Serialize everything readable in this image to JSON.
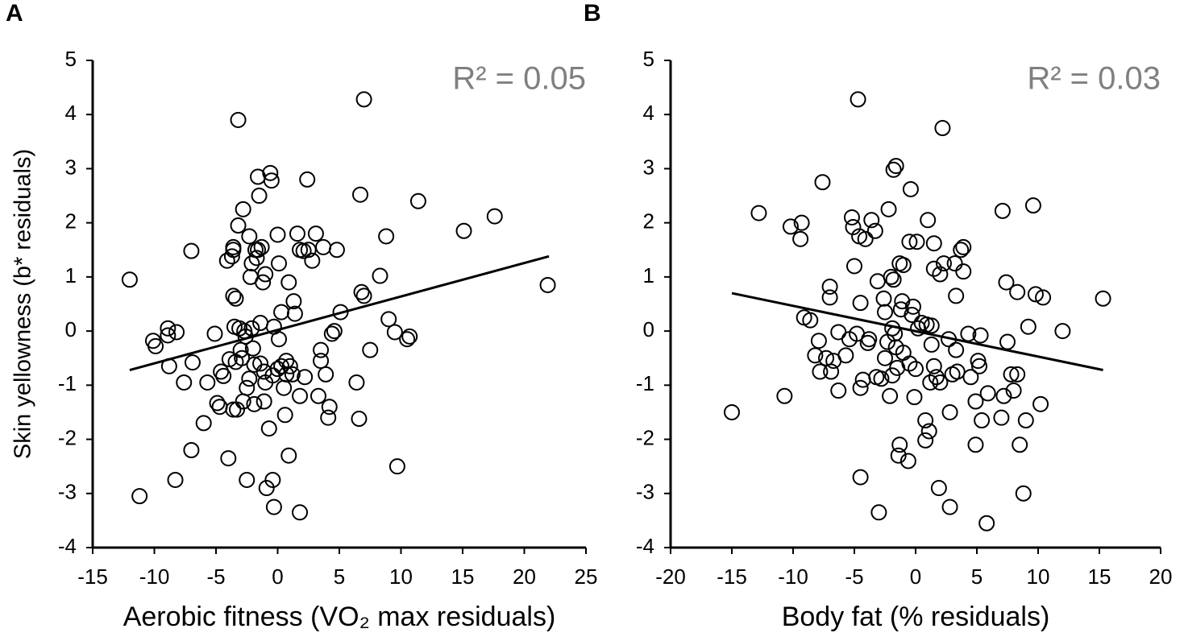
{
  "chart_data": [
    {
      "type": "scatter",
      "label": "A",
      "annotation": "R² = 0.05",
      "xlabel": "Aerobic fitness (VO₂ max residuals)",
      "ylabel": "Skin yellowness (b* residuals)",
      "xlim": [
        -15,
        25
      ],
      "xticks": [
        -15,
        -10,
        -5,
        0,
        5,
        10,
        15,
        20,
        25
      ],
      "ylim": [
        -4,
        5
      ],
      "yticks": [
        -4,
        -3,
        -2,
        -1,
        0,
        1,
        2,
        3,
        4,
        5
      ],
      "x": [
        -12,
        -11.2,
        -10.1,
        -9.9,
        -8.9,
        -8.8,
        -8.9,
        -8.3,
        -8.2,
        -7.6,
        -7,
        -6.9,
        -7,
        -6,
        -5.7,
        -5.1,
        -4.9,
        -4.7,
        -4.6,
        -4.4,
        -4.1,
        -4,
        -3.9,
        -3.7,
        -3.6,
        -3.6,
        -3.6,
        -3.5,
        -3.4,
        -3.4,
        -3.6,
        -3.3,
        -3.2,
        -3.2,
        -3.1,
        -3,
        -2.9,
        -2.8,
        -2.8,
        -2.7,
        -2.6,
        -2.5,
        -2.5,
        -2.3,
        -2.3,
        -2.2,
        -2.1,
        -2.1,
        -2,
        -1.9,
        -1.9,
        -1.8,
        -1.7,
        -1.6,
        -1.6,
        -1.5,
        -1.4,
        -1.4,
        -1.3,
        -1.2,
        -1.1,
        -1.1,
        -1,
        -1,
        -0.9,
        -0.7,
        -0.6,
        -0.5,
        -0.4,
        -0.4,
        -0.3,
        -0.3,
        0,
        0,
        0.1,
        0.1,
        0.3,
        0.3,
        0.5,
        0.6,
        0.7,
        0.7,
        0.9,
        0.9,
        1,
        1.2,
        1.3,
        1.4,
        1.6,
        1.8,
        1.8,
        1.8,
        2.1,
        2.2,
        2.4,
        2.5,
        2.8,
        3.1,
        3.3,
        3.5,
        3.5,
        3.7,
        3.9,
        4.2,
        4.1,
        4.4,
        4.6,
        4.8,
        5.1,
        6.4,
        6.6,
        6.7,
        6.8,
        7,
        7,
        7.5,
        8.3,
        8.8,
        9,
        9.5,
        9.7,
        10.5,
        10.7,
        11.4,
        15.1,
        17.6,
        21.9
      ],
      "values": [
        0.95,
        -3.05,
        -0.18,
        -0.28,
        0.05,
        -0.65,
        -0.08,
        -2.75,
        -0.02,
        -0.95,
        1.48,
        -0.58,
        -2.2,
        -1.7,
        -0.95,
        -0.05,
        -1.33,
        -1.4,
        -0.75,
        -0.83,
        1.3,
        -2.35,
        -0.52,
        1.38,
        1.5,
        1.55,
        0.65,
        0.08,
        0.6,
        -0.57,
        -1.45,
        -1.45,
        3.9,
        1.95,
        0.05,
        -0.35,
        -0.5,
        -1.3,
        2.25,
        0,
        -0.1,
        -2.75,
        -1.05,
        -0.88,
        1.75,
        1,
        0.05,
        1.25,
        -0.32,
        -0.62,
        -1.35,
        1.5,
        1.35,
        1.5,
        2.85,
        2.5,
        -0.6,
        0.15,
        1.55,
        0.9,
        -1.3,
        -0.75,
        -0.95,
        1.05,
        -2.9,
        -1.8,
        2.92,
        2.78,
        -2.75,
        -0.82,
        -3.25,
        0.08,
        1.78,
        -0.7,
        -0.15,
        1.25,
        -0.65,
        0.35,
        -1.05,
        -1.55,
        -0.55,
        -0.8,
        -2.3,
        0.9,
        -0.65,
        -0.8,
        0.55,
        0.32,
        1.8,
        -3.35,
        1.5,
        -1.2,
        1.48,
        -0.85,
        2.8,
        1.5,
        1.3,
        1.8,
        -1.2,
        -0.55,
        -0.35,
        1.55,
        -0.8,
        -1.4,
        -1.6,
        -0.05,
        0,
        1.5,
        0.35,
        -0.95,
        -1.62,
        2.52,
        0.72,
        0.65,
        4.28,
        -0.35,
        1.02,
        1.75,
        0.22,
        -0.02,
        -2.5,
        -0.15,
        -0.1,
        2.4,
        1.85,
        2.12,
        0.85
      ],
      "trendline": {
        "x": [
          -12,
          22
        ],
        "values": [
          -0.72,
          1.38
        ]
      }
    },
    {
      "type": "scatter",
      "label": "B",
      "annotation": "R² = 0.03",
      "xlabel": "Body fat (% residuals)",
      "xlim": [
        -20,
        20
      ],
      "xticks": [
        -20,
        -15,
        -10,
        -5,
        0,
        5,
        10,
        15,
        20
      ],
      "ylim": [
        -4,
        5
      ],
      "yticks": [
        -4,
        -3,
        -2,
        -1,
        0,
        1,
        2,
        3,
        4,
        5
      ],
      "x": [
        -15,
        -12.8,
        -10.7,
        -10.2,
        -9.3,
        -9.4,
        -9.1,
        -8.6,
        -8.2,
        -7.9,
        -7.8,
        -7.6,
        -7.3,
        -7,
        -7,
        -6.9,
        -6.7,
        -6.3,
        -6.3,
        -5.7,
        -5.4,
        -5.2,
        -5.1,
        -5,
        -4.8,
        -4.7,
        -4.6,
        -4.5,
        -4.3,
        -4.5,
        -4.5,
        -4.1,
        -3.9,
        -3.8,
        -3.6,
        -3.3,
        -3.1,
        -3.2,
        -3,
        -2.8,
        -2.6,
        -2.5,
        -2.5,
        -2.3,
        -2.2,
        -2.1,
        -2,
        -1.9,
        -1.9,
        -1.8,
        -1.8,
        -1.7,
        -1.6,
        -1.6,
        -1.5,
        -1.4,
        -1.3,
        -1.3,
        -1.2,
        -1.1,
        -1,
        -1,
        -0.6,
        -0.5,
        -0.5,
        -0.4,
        -0.3,
        -0.2,
        -0.1,
        0,
        0.1,
        0.2,
        0.5,
        0.8,
        0.8,
        0.9,
        1,
        1.1,
        1.2,
        1.3,
        1.3,
        1.5,
        1.5,
        1.5,
        1.7,
        1.9,
        2,
        2,
        2.2,
        2.3,
        2.7,
        2.8,
        2.8,
        3,
        3.2,
        3.3,
        3.3,
        3.4,
        3.7,
        3.9,
        3.9,
        4.3,
        4.5,
        4.9,
        4.9,
        5.1,
        5.2,
        5.3,
        5.4,
        5.8,
        5.9,
        7,
        7.1,
        7.2,
        7.4,
        7.5,
        7.8,
        8,
        8.3,
        8.3,
        8.5,
        8.8,
        9,
        9.2,
        9.6,
        9.8,
        10.2,
        10.4,
        12,
        15.3
      ],
      "values": [
        -1.5,
        2.18,
        -1.2,
        1.93,
        2,
        1.7,
        0.25,
        0.2,
        -0.45,
        -0.18,
        -0.75,
        2.75,
        -0.5,
        0.82,
        0.62,
        -0.75,
        -0.55,
        -0.02,
        -1.1,
        -0.45,
        -0.15,
        2.1,
        1.92,
        1.2,
        -0.05,
        4.28,
        1.75,
        0.52,
        -0.9,
        -1.05,
        -2.7,
        1.7,
        -0.22,
        -0.15,
        2.05,
        1.85,
        0.92,
        -0.85,
        -3.35,
        -0.88,
        0.6,
        0.35,
        -0.5,
        -0.2,
        2.25,
        -1.2,
        1,
        -0.82,
        0.05,
        0.95,
        2.98,
        -0.05,
        -0.3,
        3.05,
        -0.68,
        -2.3,
        -2.1,
        1.25,
        0.4,
        0.55,
        1.22,
        -0.4,
        -2.4,
        -0.6,
        1.65,
        2.62,
        0.3,
        0.45,
        -1.22,
        -0.7,
        1.65,
        0.05,
        0.15,
        -1.65,
        -2.02,
        0.12,
        2.05,
        -1.85,
        -0.95,
        0.1,
        -0.25,
        1.15,
        1.62,
        -0.65,
        -0.85,
        -2.9,
        -0.95,
        1.05,
        3.75,
        1.25,
        -0.15,
        -1.5,
        -3.25,
        -0.8,
        1.25,
        0.65,
        -0.35,
        -0.75,
        1.5,
        1.1,
        1.55,
        -0.05,
        -0.85,
        -1.3,
        -2.1,
        -0.55,
        -0.65,
        -0.08,
        -1.65,
        -3.55,
        -1.15,
        -1.6,
        2.22,
        -1.2,
        0.9,
        -0.2,
        -0.8,
        -1.1,
        -0.8,
        0.72,
        -2.1,
        -3,
        -1.65,
        0.08,
        2.32,
        0.68,
        -1.35,
        0.62,
        0,
        0.6
      ],
      "trendline": {
        "x": [
          -15,
          15.3
        ],
        "values": [
          0.7,
          -0.72
        ]
      }
    }
  ]
}
